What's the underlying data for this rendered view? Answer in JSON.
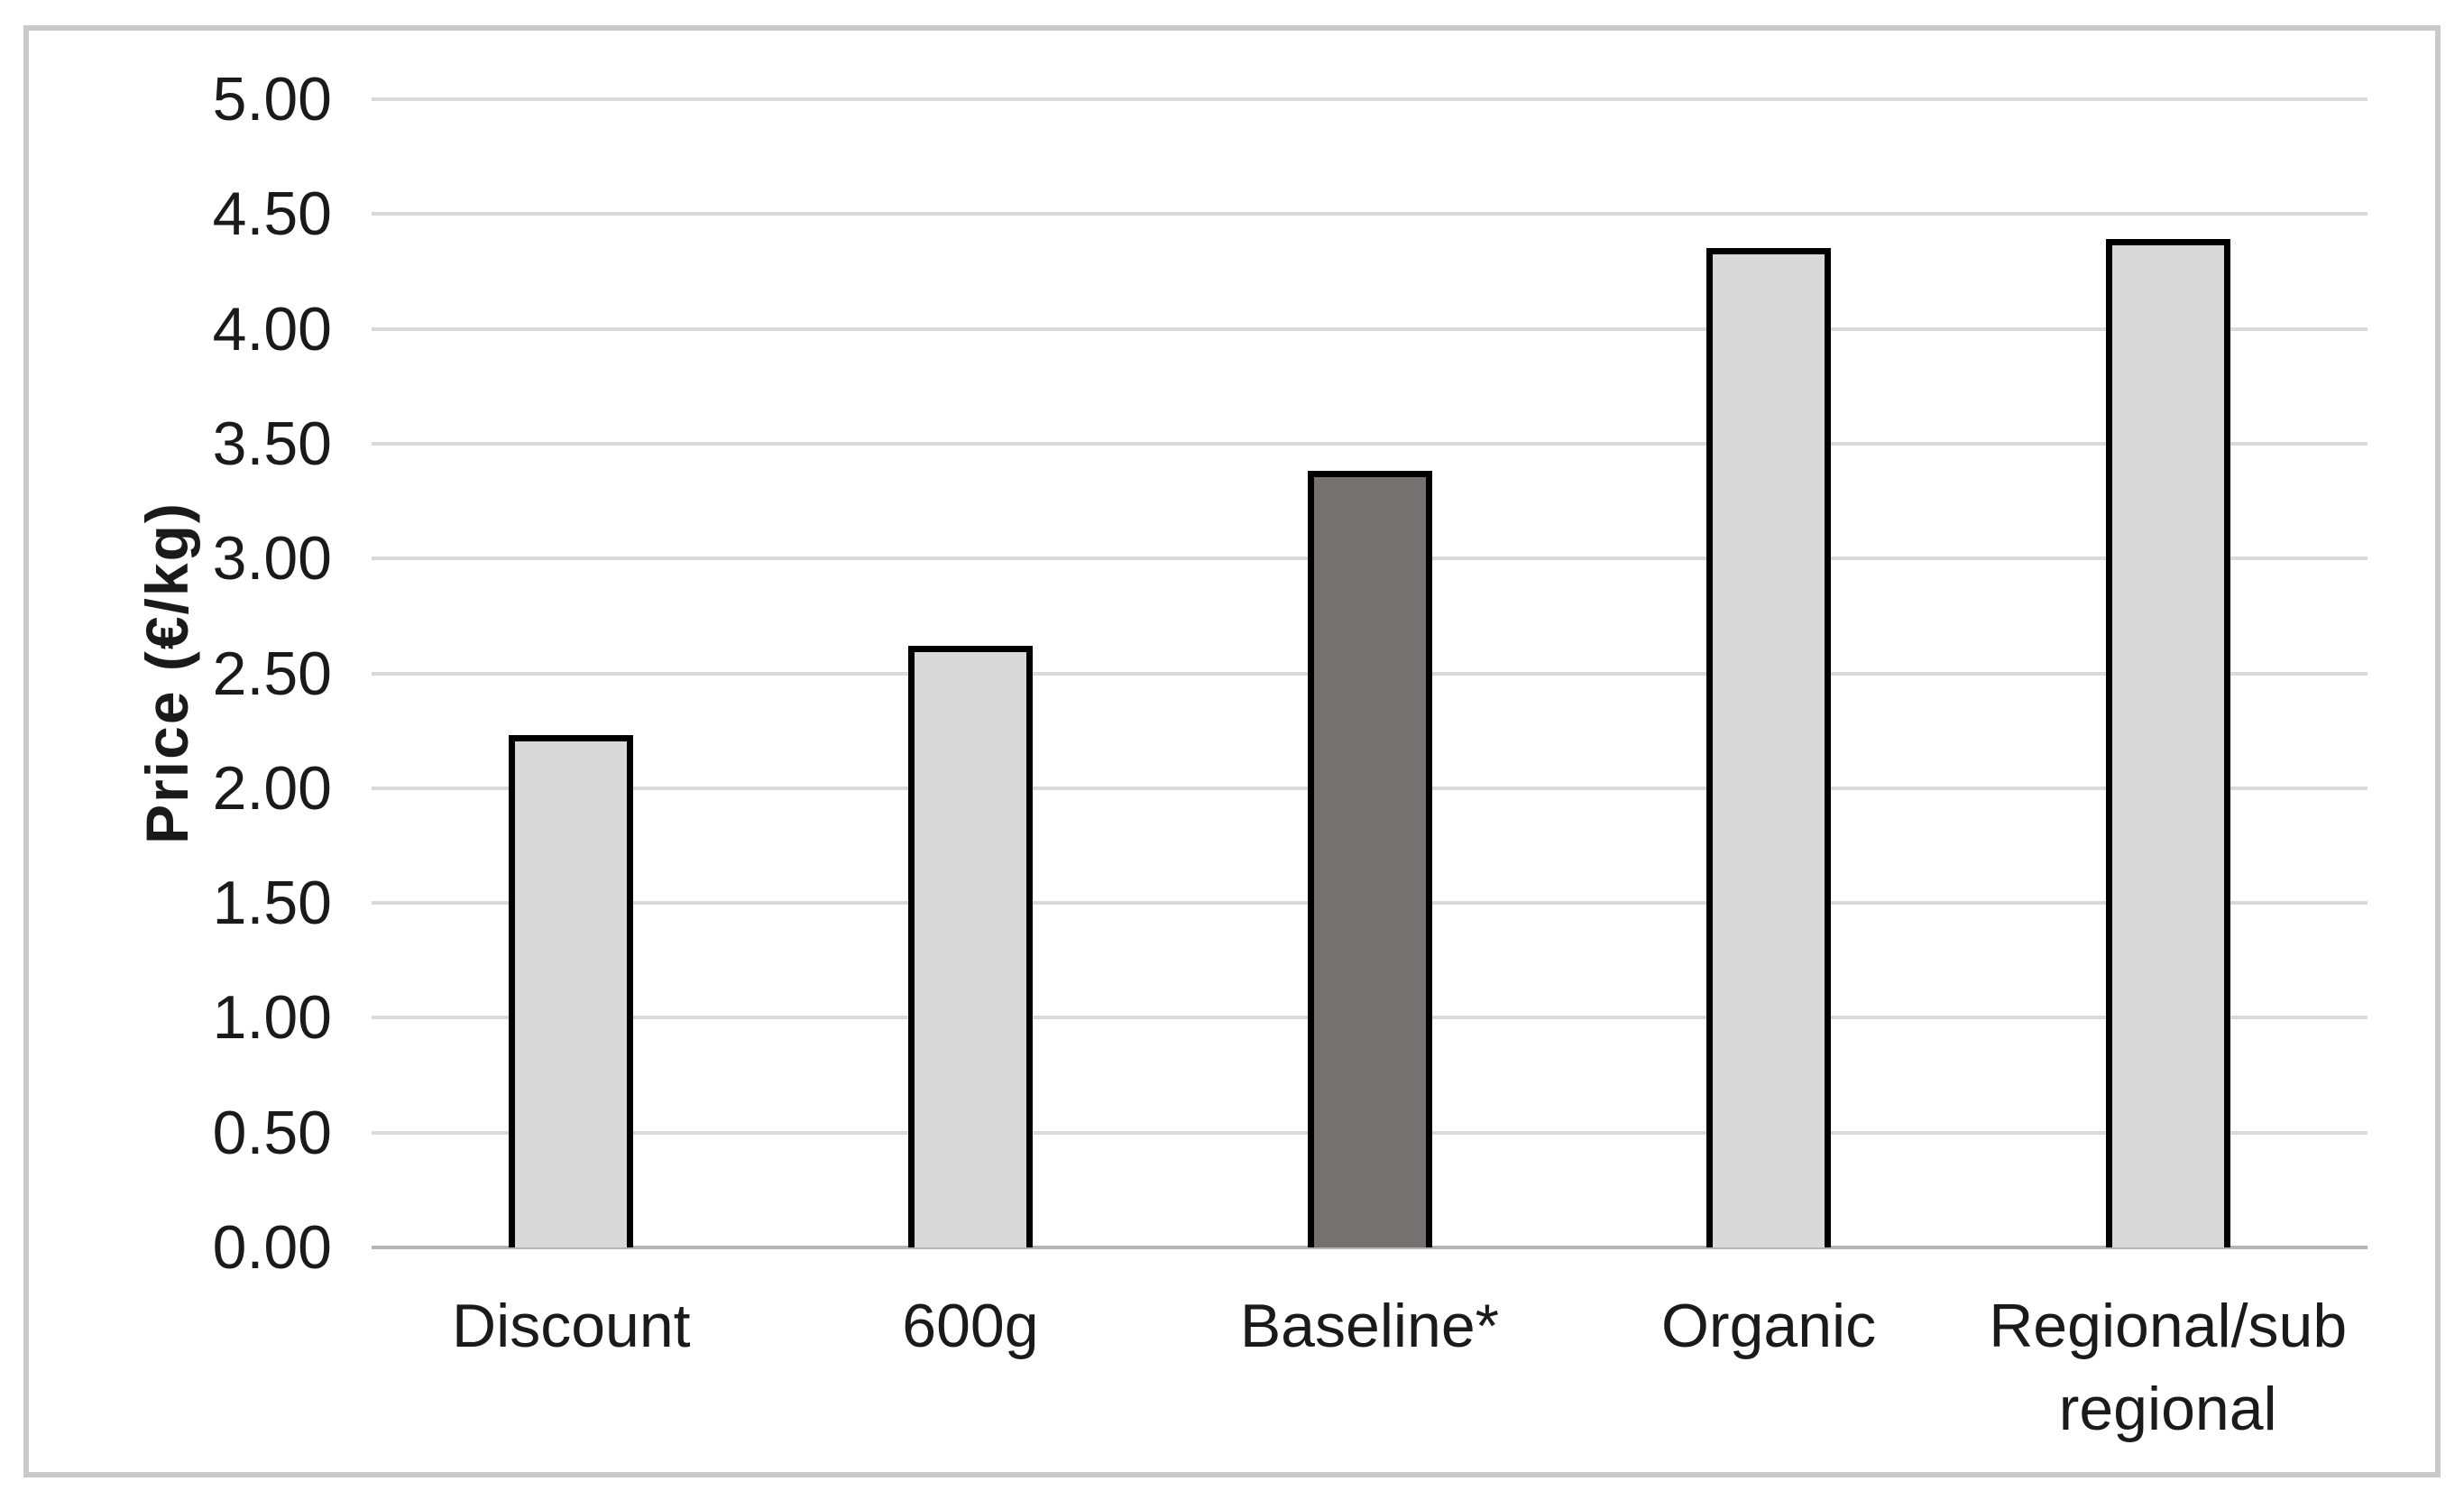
{
  "chart_data": {
    "type": "bar",
    "title": "",
    "xlabel": "",
    "ylabel": "Price (€/kg)",
    "categories": [
      "Discount",
      "600g",
      "Baseline*",
      "Organic",
      "Regional/sub regional"
    ],
    "values": [
      2.23,
      2.62,
      3.38,
      4.35,
      4.39
    ],
    "series": [
      {
        "name": "Price",
        "values": [
          2.23,
          2.62,
          3.38,
          4.35,
          4.39
        ]
      }
    ],
    "ylim": [
      0,
      5
    ],
    "ytick_step": 0.5,
    "ytick_labels": [
      "0.00",
      "0.50",
      "1.00",
      "1.50",
      "2.00",
      "2.50",
      "3.00",
      "3.50",
      "4.00",
      "4.50",
      "5.00"
    ],
    "grid": true,
    "legend": false,
    "highlighted_category": "Baseline*",
    "colors": {
      "bar_fill": "#d9d9d9",
      "bar_highlight_fill": "#767171",
      "bar_border": "#000000",
      "gridline": "#d9d9d9",
      "axis_line": "#b5b5b5",
      "frame_border": "#c9c9c9",
      "text": "#1a1a1a"
    }
  }
}
